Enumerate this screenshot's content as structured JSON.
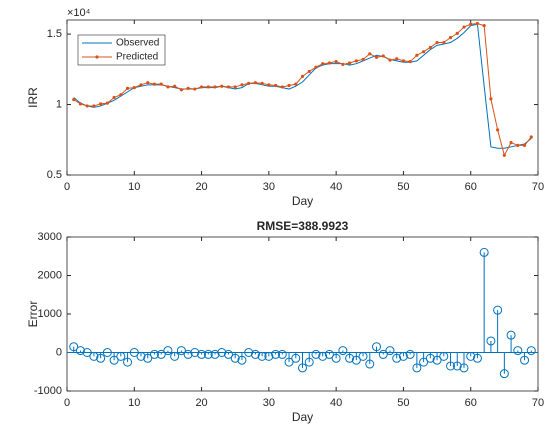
{
  "chart_data": [
    {
      "type": "line",
      "ylabel": "IRR",
      "xlabel": "Day",
      "y_multiplier_label": "×10⁴",
      "legend": "northwest",
      "grid": false,
      "xlim": [
        0,
        70
      ],
      "xticks": [
        0,
        10,
        20,
        30,
        40,
        50,
        60,
        70
      ],
      "ylim": [
        0.5,
        1.6
      ],
      "yticks": [
        0.5,
        1,
        1.5
      ],
      "x": [
        1,
        2,
        3,
        4,
        5,
        6,
        7,
        8,
        9,
        10,
        11,
        12,
        13,
        14,
        15,
        16,
        17,
        18,
        19,
        20,
        21,
        22,
        23,
        24,
        25,
        26,
        27,
        28,
        29,
        30,
        31,
        32,
        33,
        34,
        35,
        36,
        37,
        38,
        39,
        40,
        41,
        42,
        43,
        44,
        45,
        46,
        47,
        48,
        49,
        50,
        51,
        52,
        53,
        54,
        55,
        56,
        57,
        58,
        59,
        60,
        61,
        62,
        63,
        64,
        65,
        66,
        67,
        68,
        69
      ],
      "series": [
        {
          "name": "Observed",
          "color": "#0072bd",
          "marker": false,
          "values": [
            1.05,
            1.01,
            0.99,
            0.98,
            0.99,
            1.01,
            1.03,
            1.06,
            1.09,
            1.12,
            1.13,
            1.14,
            1.14,
            1.14,
            1.13,
            1.12,
            1.11,
            1.11,
            1.11,
            1.12,
            1.12,
            1.12,
            1.13,
            1.12,
            1.11,
            1.12,
            1.15,
            1.15,
            1.14,
            1.13,
            1.13,
            1.12,
            1.11,
            1.13,
            1.16,
            1.21,
            1.26,
            1.28,
            1.29,
            1.29,
            1.29,
            1.28,
            1.29,
            1.31,
            1.33,
            1.35,
            1.34,
            1.32,
            1.31,
            1.3,
            1.3,
            1.31,
            1.35,
            1.39,
            1.42,
            1.43,
            1.44,
            1.47,
            1.51,
            1.56,
            1.57,
            1.13,
            0.7,
            0.69,
            0.69,
            0.7,
            0.71,
            0.72,
            0.76
          ]
        },
        {
          "name": "Predicted",
          "color": "#d95319",
          "marker": true,
          "values": [
            1.035,
            1.005,
            0.99,
            0.99,
            1.005,
            1.01,
            1.05,
            1.07,
            1.115,
            1.12,
            1.14,
            1.155,
            1.145,
            1.145,
            1.125,
            1.13,
            1.105,
            1.115,
            1.11,
            1.125,
            1.125,
            1.125,
            1.13,
            1.125,
            1.125,
            1.14,
            1.15,
            1.155,
            1.15,
            1.14,
            1.135,
            1.125,
            1.135,
            1.145,
            1.2,
            1.235,
            1.265,
            1.29,
            1.295,
            1.305,
            1.285,
            1.295,
            1.31,
            1.32,
            1.36,
            1.335,
            1.345,
            1.315,
            1.325,
            1.31,
            1.305,
            1.35,
            1.375,
            1.405,
            1.44,
            1.44,
            1.475,
            1.505,
            1.55,
            1.57,
            1.575,
            1.56,
            1.04,
            0.82,
            0.64,
            0.73,
            0.71,
            0.71,
            0.77
          ]
        }
      ]
    },
    {
      "type": "stem",
      "title": "RMSE=388.9923",
      "ylabel": "Error",
      "xlabel": "Day",
      "grid": false,
      "xlim": [
        0,
        70
      ],
      "xticks": [
        0,
        10,
        20,
        30,
        40,
        50,
        60,
        70
      ],
      "ylim": [
        -1000,
        3000
      ],
      "yticks": [
        -1000,
        0,
        1000,
        2000,
        3000
      ],
      "x": [
        1,
        2,
        3,
        4,
        5,
        6,
        7,
        8,
        9,
        10,
        11,
        12,
        13,
        14,
        15,
        16,
        17,
        18,
        19,
        20,
        21,
        22,
        23,
        24,
        25,
        26,
        27,
        28,
        29,
        30,
        31,
        32,
        33,
        34,
        35,
        36,
        37,
        38,
        39,
        40,
        41,
        42,
        43,
        44,
        45,
        46,
        47,
        48,
        49,
        50,
        51,
        52,
        53,
        54,
        55,
        56,
        57,
        58,
        59,
        60,
        61,
        62,
        63,
        64,
        65,
        66,
        67,
        68,
        69
      ],
      "color": "#0072bd",
      "values": [
        150,
        50,
        0,
        -100,
        -150,
        0,
        -200,
        -100,
        -250,
        0,
        -100,
        -150,
        -50,
        -50,
        50,
        -100,
        50,
        -50,
        0,
        -50,
        -50,
        -50,
        0,
        -50,
        -150,
        -200,
        0,
        -50,
        -100,
        -100,
        -50,
        -50,
        -250,
        -150,
        -400,
        -250,
        -50,
        -100,
        -50,
        -150,
        50,
        -150,
        -200,
        -100,
        -300,
        150,
        -50,
        50,
        -150,
        -100,
        -50,
        -400,
        -250,
        -150,
        -200,
        -100,
        -350,
        -350,
        -400,
        -100,
        -150,
        2600,
        300,
        1100,
        -550,
        450,
        50,
        -200,
        50
      ]
    }
  ]
}
